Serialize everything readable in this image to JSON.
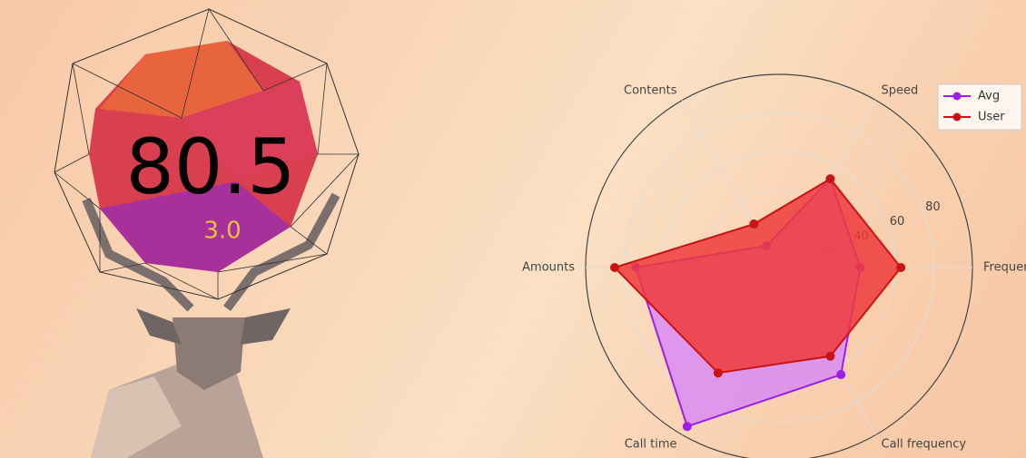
{
  "score": "80.5",
  "sub_score": "3.0",
  "chart_data": {
    "type": "radar",
    "categories": [
      "Frequency",
      "Speed",
      "Contents",
      "Amounts",
      "Call time",
      "Call frequency"
    ],
    "series": [
      {
        "name": "Avg",
        "color": "#9b1fe8",
        "fill": "#d98cf5",
        "values": [
          42,
          53,
          13,
          74,
          95,
          64
        ]
      },
      {
        "name": "User",
        "color": "#c81414",
        "fill": "#ee3b3b",
        "values": [
          63,
          53,
          26,
          85,
          63,
          53
        ]
      }
    ],
    "rlim": [
      0,
      100
    ],
    "rticks": [
      20,
      40,
      60,
      80
    ],
    "grid": true,
    "legend": "upper right"
  }
}
